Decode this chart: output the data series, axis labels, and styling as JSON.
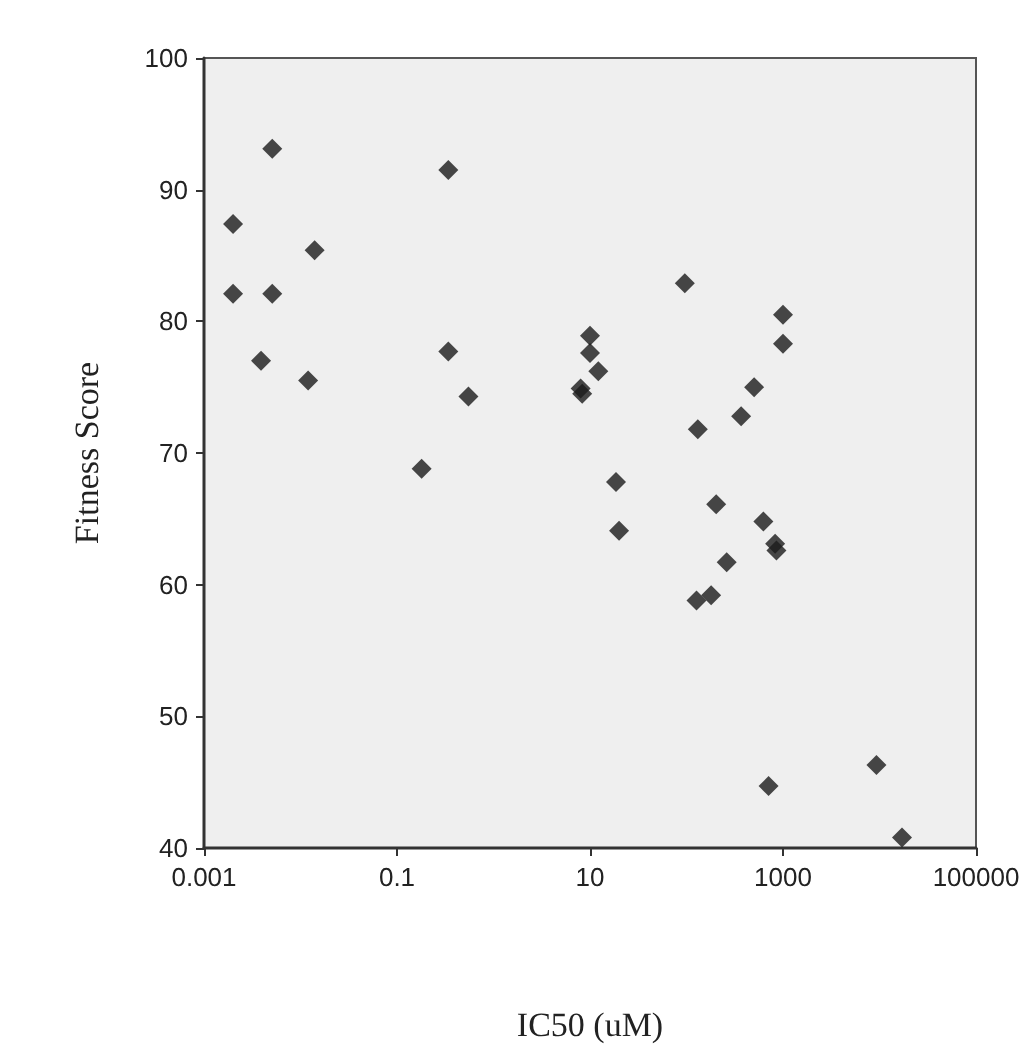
{
  "chart_data": {
    "type": "scatter",
    "xlabel": "IC50 (uM)",
    "ylabel": "Fitness Score",
    "log": "x",
    "marker": "diamond",
    "grid": false,
    "xlim": [
      0.001,
      100000
    ],
    "xticks": [
      0.001,
      0.1,
      10,
      1000,
      100000
    ],
    "ylim": [
      40,
      100
    ],
    "yticks": [
      40,
      50,
      60,
      70,
      80,
      90,
      100
    ],
    "series": [
      {
        "color": "#1a1a1a",
        "x": [
          0.0051,
          0.002,
          0.002,
          0.0051,
          0.0039,
          0.014,
          0.012,
          0.34,
          0.34,
          0.55,
          0.18,
          10,
          10,
          12.2,
          8.0,
          8.3,
          18.6,
          20,
          96,
          131,
          203,
          261,
          127,
          180,
          368,
          502,
          626,
          829,
          855,
          1000,
          1000,
          709,
          9300,
          17100
        ],
        "values": [
          93.1,
          87.4,
          82.1,
          82.1,
          77.0,
          85.4,
          75.5,
          91.5,
          77.7,
          74.3,
          68.8,
          78.9,
          77.6,
          76.2,
          74.9,
          74.5,
          67.8,
          64.1,
          82.9,
          71.8,
          66.1,
          61.7,
          58.8,
          59.2,
          72.8,
          75.0,
          64.8,
          63.1,
          62.6,
          80.5,
          78.3,
          44.7,
          46.3,
          40.8
        ]
      }
    ]
  }
}
